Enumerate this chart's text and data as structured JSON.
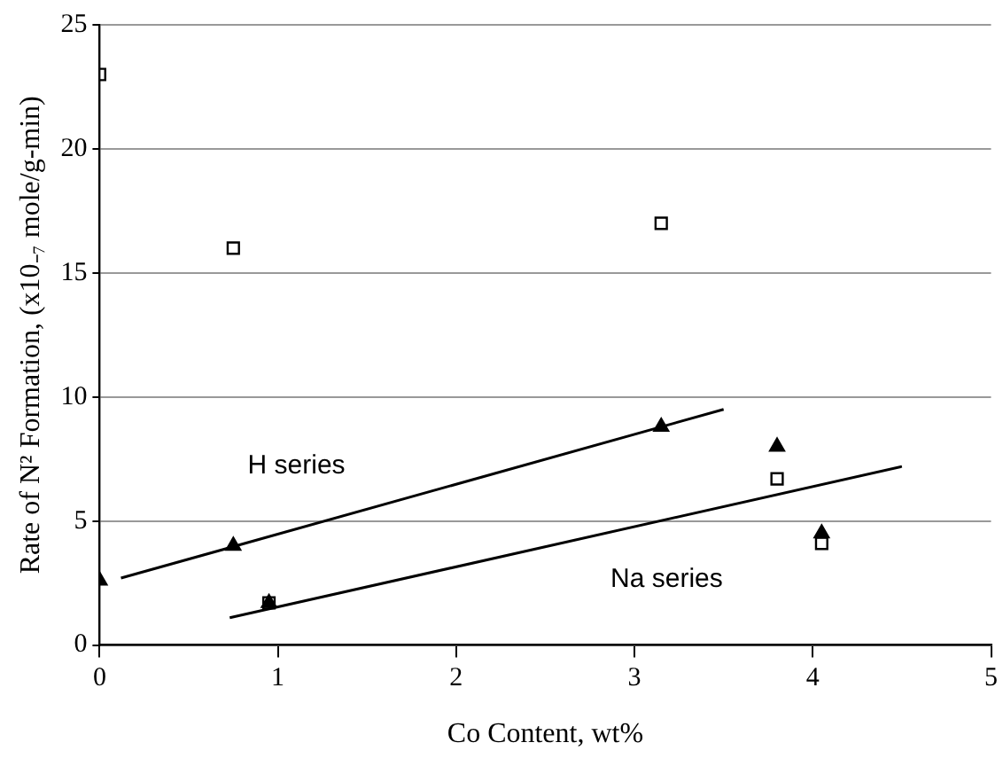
{
  "chart_data": {
    "type": "scatter",
    "xlabel": "Co Content, wt%",
    "ylabel": "Rate of N² Formation, (x10₋₇ mole/g-min)",
    "xlim": [
      0,
      5
    ],
    "xticks": [
      0,
      1,
      2,
      3,
      4,
      5
    ],
    "ylim": [
      0,
      25
    ],
    "yticks": [
      0,
      5,
      10,
      15,
      20,
      25
    ],
    "grid": "y",
    "legend": false,
    "series": [
      {
        "marker": "square",
        "color": "#000000",
        "x": [
          0,
          0.75,
          0.95,
          3.15,
          3.8,
          4.05
        ],
        "values": [
          23,
          16,
          1.7,
          17,
          6.7,
          4.1
        ]
      },
      {
        "marker": "triangle",
        "color": "#000000",
        "x": [
          0,
          0.75,
          0.95,
          3.15,
          3.8,
          4.05
        ],
        "values": [
          2.6,
          4.0,
          1.7,
          8.8,
          8.0,
          4.5
        ]
      },
      {
        "type": "line",
        "name": "H series",
        "marker": "none",
        "color": "#000000",
        "x": [
          0.12,
          3.5
        ],
        "values": [
          2.7,
          9.5
        ]
      },
      {
        "type": "line",
        "name": "Na series",
        "marker": "none",
        "color": "#000000",
        "x": [
          0.73,
          4.5
        ],
        "values": [
          1.1,
          7.2
        ]
      }
    ]
  }
}
